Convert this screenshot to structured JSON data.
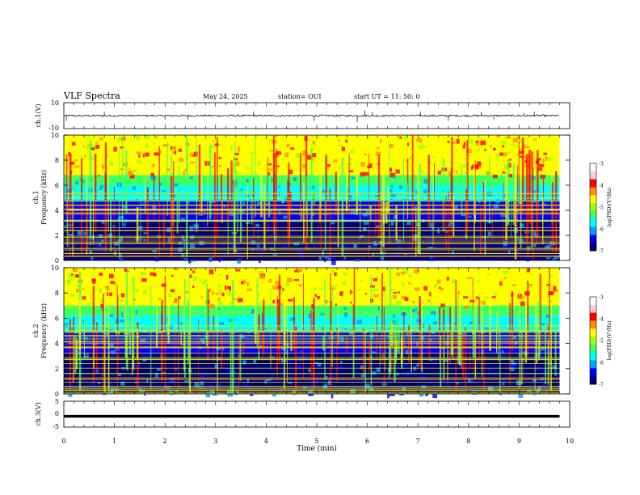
{
  "header": {
    "title": "VLF Spectra",
    "date": "May 24, 2025",
    "station": "station= OUI",
    "start": "start  UT =   11: 50: 0"
  },
  "chart_data": [
    {
      "type": "line",
      "panel": "ch1-waveform",
      "ylabel": "ch.1(V)",
      "ylim": [
        -10,
        10
      ],
      "yticks": [
        "10",
        "-10"
      ],
      "baseline": 0,
      "description_series": "noisy waveform fluctuating near zero with occasional spikes",
      "spike_times_min": [
        0.05,
        0.8,
        2.0,
        2.45,
        3.75,
        4.95,
        5.8,
        5.95,
        6.1,
        7.05,
        7.6,
        8.25,
        8.5,
        9.1,
        9.3
      ],
      "spike_amplitudes_v": [
        -4,
        3,
        -3,
        -3,
        3,
        -4,
        -5,
        4,
        3,
        3,
        -4,
        3,
        -3,
        2,
        3
      ]
    },
    {
      "type": "heatmap",
      "panel": "ch1-spectrogram",
      "ylabel": "Frequency (kHz)",
      "channel_label": "ch.1",
      "ylim": [
        0,
        10
      ],
      "yticks": [
        "10",
        "8",
        "6",
        "4",
        "2",
        "0"
      ],
      "band_boundaries_khz": [
        6.8,
        6.0,
        4.8,
        3.0
      ],
      "colorbar": {
        "label": "log(PSD)(V²/Hz)",
        "range": [
          -7,
          -3
        ],
        "ticks": [
          "-3",
          "-4",
          "-5",
          "-6",
          "-7"
        ]
      }
    },
    {
      "type": "heatmap",
      "panel": "ch2-spectrogram",
      "ylabel": "Frequency (kHz)",
      "channel_label": "ch.2",
      "ylim": [
        0,
        10
      ],
      "yticks": [
        "10",
        "8",
        "6",
        "4",
        "2",
        "0"
      ],
      "band_boundaries_khz": [
        7.0,
        6.2,
        5.0,
        3.2
      ],
      "colorbar": {
        "label": "log(PSD)(V²/Hz)",
        "range": [
          -7,
          -3
        ],
        "ticks": [
          "-3",
          "-4",
          "-5",
          "-6",
          "-7"
        ]
      }
    },
    {
      "type": "line",
      "panel": "ch3-waveform",
      "ylabel": "ch.3(V)",
      "ylim": [
        -5,
        5
      ],
      "yticks": [
        "5",
        "0",
        "-5"
      ],
      "constant_value_v": -0.8
    }
  ],
  "xaxis": {
    "label": "Time (min)",
    "xlim": [
      0,
      10
    ],
    "ticks": [
      "0",
      "1",
      "2",
      "3",
      "4",
      "5",
      "6",
      "7",
      "8",
      "9",
      "10"
    ],
    "data_end_min": 9.8
  },
  "colors": {
    "palette": [
      "#00007a",
      "#0000ff",
      "#00a0ff",
      "#00ffff",
      "#40ff60",
      "#a0ff00",
      "#ffff00",
      "#ff9000",
      "#ff0000",
      "#ffd0d0",
      "#ffffff"
    ]
  }
}
